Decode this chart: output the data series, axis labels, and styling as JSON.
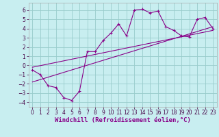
{
  "xlabel": "Windchill (Refroidissement éolien,°C)",
  "bg_color": "#c8eef0",
  "line_color": "#880088",
  "grid_color": "#99cccc",
  "xlim": [
    -0.5,
    23.5
  ],
  "ylim": [
    -4.5,
    6.8
  ],
  "xticks": [
    0,
    1,
    2,
    3,
    4,
    5,
    6,
    7,
    8,
    9,
    10,
    11,
    12,
    13,
    14,
    15,
    16,
    17,
    18,
    19,
    20,
    21,
    22,
    23
  ],
  "yticks": [
    -4,
    -3,
    -2,
    -1,
    0,
    1,
    2,
    3,
    4,
    5,
    6
  ],
  "data_x": [
    0,
    1,
    2,
    3,
    4,
    5,
    6,
    7,
    8,
    9,
    10,
    11,
    12,
    13,
    14,
    15,
    16,
    17,
    18,
    19,
    20,
    21,
    22,
    23
  ],
  "data_y": [
    -0.5,
    -1.0,
    -2.2,
    -2.4,
    -3.5,
    -3.8,
    -2.8,
    1.5,
    1.5,
    2.7,
    3.5,
    4.5,
    3.2,
    6.0,
    6.1,
    5.7,
    5.9,
    4.2,
    3.8,
    3.2,
    3.1,
    5.0,
    5.2,
    4.0
  ],
  "line1_x": [
    0,
    23
  ],
  "line1_y": [
    -1.8,
    4.2
  ],
  "line2_x": [
    0,
    23
  ],
  "line2_y": [
    -0.2,
    3.8
  ],
  "xlabel_fontsize": 6.5,
  "tick_fontsize": 5.5,
  "marker_size": 2.5,
  "line_width": 0.8
}
